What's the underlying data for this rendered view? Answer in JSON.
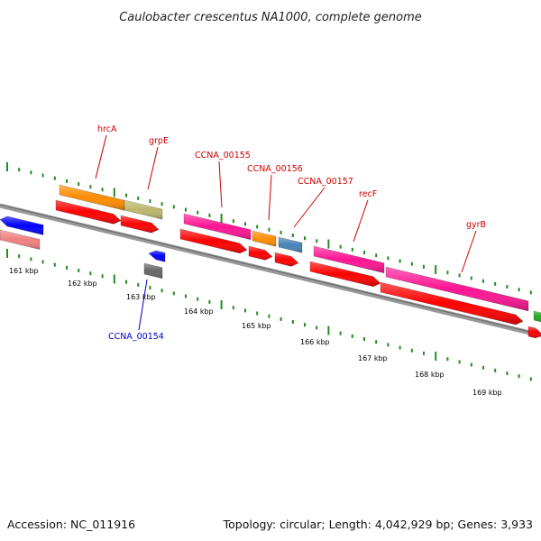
{
  "title": "Caulobacter crescentus NA1000, complete genome",
  "footer": {
    "accession": "Accession: NC_011916",
    "summary": "Topology: circular; Length: 4,042,929 bp; Genes: 3,933"
  },
  "colors": {
    "backbone": "#888888",
    "gc_ticks": "#228b22",
    "label_red": "#cc0000",
    "label_blue": "#0000cc",
    "cds": "#ff0000",
    "gene_orange": "#ff8c00",
    "gene_khaki": "#bdb76b",
    "gene_pink": "#ff1493",
    "gene_blue": "#0000ff",
    "gene_salmon": "#f08080",
    "gene_gray": "#666666",
    "gene_steelblue": "#4682b4",
    "gene_green": "#22aa22"
  },
  "ticks": [
    "161 kbp",
    "162 kbp",
    "163 kbp",
    "164 kbp",
    "165 kbp",
    "166 kbp",
    "167 kbp",
    "168 kbp",
    "169 kbp"
  ],
  "gene_labels": [
    {
      "text": "hrcA",
      "color": "red"
    },
    {
      "text": "grpE",
      "color": "red"
    },
    {
      "text": "CCNA_00155",
      "color": "red"
    },
    {
      "text": "CCNA_00156",
      "color": "red"
    },
    {
      "text": "CCNA_00157",
      "color": "red"
    },
    {
      "text": "recF",
      "color": "red"
    },
    {
      "text": "gyrB",
      "color": "red"
    },
    {
      "text": "CCNA_00154",
      "color": "blue"
    }
  ]
}
